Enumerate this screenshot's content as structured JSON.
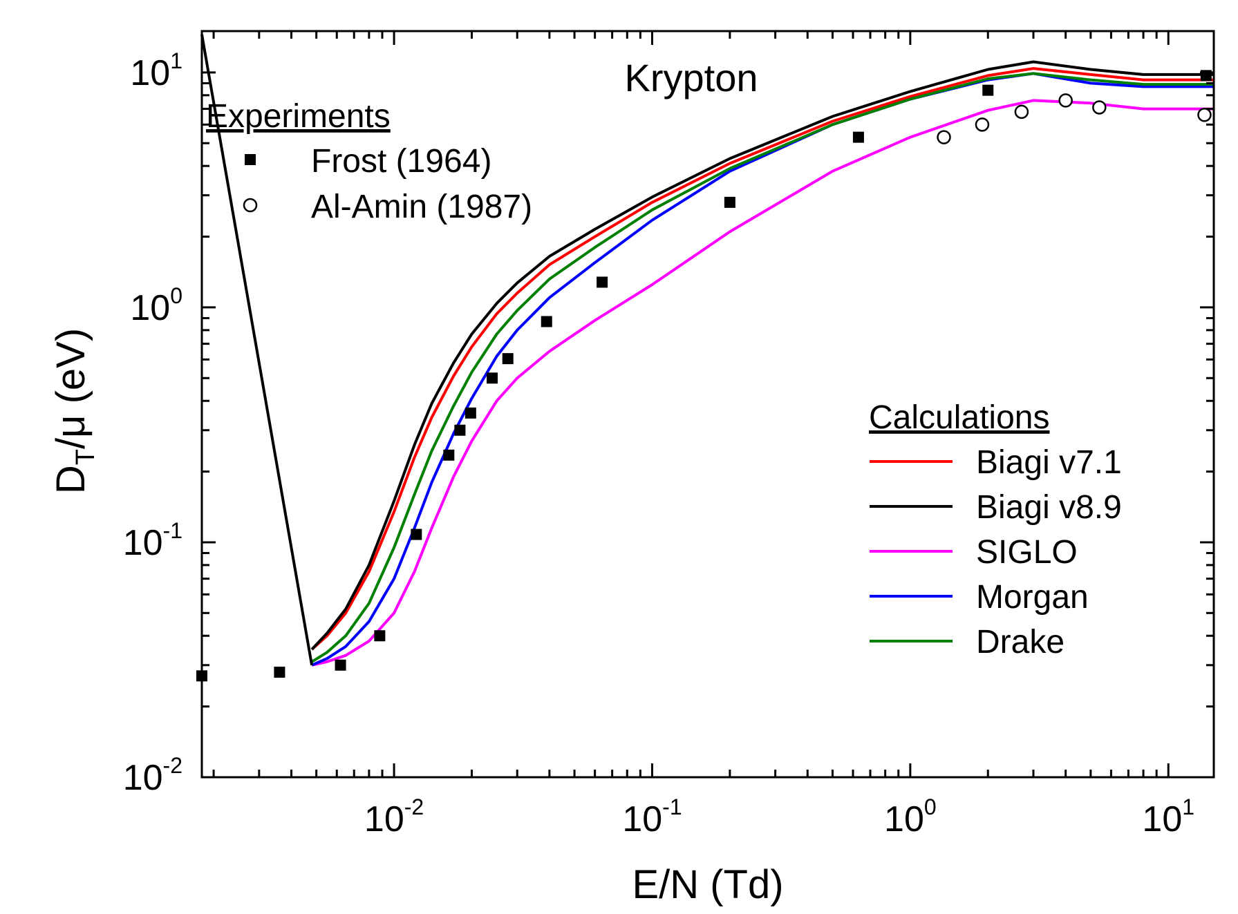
{
  "chart_data": {
    "type": "line",
    "title": "Krypton",
    "xlabel": "E/N (Td)",
    "ylabel": {
      "main": "D",
      "sub": "T",
      "rest": "/μ (eV)"
    },
    "xscale": "log",
    "yscale": "log",
    "xlim": [
      0.0018,
      15
    ],
    "ylim": [
      0.01,
      15
    ],
    "x_ticks": [
      {
        "value": 0.01,
        "base": "10",
        "exp": "-2"
      },
      {
        "value": 0.1,
        "base": "10",
        "exp": "-1"
      },
      {
        "value": 1,
        "base": "10",
        "exp": "0"
      },
      {
        "value": 10,
        "base": "10",
        "exp": "1"
      }
    ],
    "y_ticks": [
      {
        "value": 0.01,
        "base": "10",
        "exp": "-2"
      },
      {
        "value": 0.1,
        "base": "10",
        "exp": "-1"
      },
      {
        "value": 1,
        "base": "10",
        "exp": "0"
      },
      {
        "value": 10,
        "base": "10",
        "exp": "1"
      }
    ],
    "grid": false,
    "legend_experiments": {
      "title": "Experiments",
      "placement": "top-left"
    },
    "legend_calculations": {
      "title": "Calculations",
      "placement": "bottom-right"
    },
    "experiments": [
      {
        "name": "Frost (1964)",
        "marker": "filled-square",
        "points": [
          [
            0.0018,
            0.027
          ],
          [
            0.0036,
            0.028
          ],
          [
            0.0062,
            0.03
          ],
          [
            0.0088,
            0.04
          ],
          [
            0.0122,
            0.108
          ],
          [
            0.0163,
            0.235
          ],
          [
            0.018,
            0.3
          ],
          [
            0.0198,
            0.355
          ],
          [
            0.024,
            0.5
          ],
          [
            0.0276,
            0.605
          ],
          [
            0.039,
            0.87
          ],
          [
            0.064,
            1.28
          ],
          [
            0.2,
            2.8
          ],
          [
            0.63,
            5.3
          ],
          [
            2.0,
            8.4
          ],
          [
            14.0,
            9.7
          ]
        ]
      },
      {
        "name": "Al-Amin (1987)",
        "marker": "open-circle",
        "points": [
          [
            1.35,
            5.3
          ],
          [
            1.9,
            6.0
          ],
          [
            2.7,
            6.8
          ],
          [
            4.0,
            7.6
          ],
          [
            5.4,
            7.1
          ],
          [
            13.8,
            6.6
          ]
        ]
      }
    ],
    "series": [
      {
        "name": "Biagi v7.1",
        "color": "#ff0000",
        "points": [
          [
            0.0048,
            0.035
          ],
          [
            0.0055,
            0.04
          ],
          [
            0.0065,
            0.05
          ],
          [
            0.008,
            0.075
          ],
          [
            0.01,
            0.135
          ],
          [
            0.012,
            0.23
          ],
          [
            0.014,
            0.34
          ],
          [
            0.017,
            0.51
          ],
          [
            0.02,
            0.68
          ],
          [
            0.025,
            0.94
          ],
          [
            0.03,
            1.15
          ],
          [
            0.04,
            1.52
          ],
          [
            0.06,
            2.0
          ],
          [
            0.1,
            2.8
          ],
          [
            0.2,
            4.1
          ],
          [
            0.5,
            6.2
          ],
          [
            1.0,
            7.9
          ],
          [
            2.0,
            9.7
          ],
          [
            3.0,
            10.4
          ],
          [
            5.0,
            9.8
          ],
          [
            8.0,
            9.3
          ],
          [
            15.0,
            9.3
          ]
        ]
      },
      {
        "name": "Biagi v8.9",
        "color": "#000000",
        "points": [
          [
            0.0048,
            0.035
          ],
          [
            0.0055,
            0.041
          ],
          [
            0.0065,
            0.052
          ],
          [
            0.008,
            0.08
          ],
          [
            0.01,
            0.15
          ],
          [
            0.012,
            0.26
          ],
          [
            0.014,
            0.39
          ],
          [
            0.017,
            0.58
          ],
          [
            0.02,
            0.77
          ],
          [
            0.025,
            1.04
          ],
          [
            0.03,
            1.27
          ],
          [
            0.04,
            1.65
          ],
          [
            0.06,
            2.15
          ],
          [
            0.1,
            2.95
          ],
          [
            0.2,
            4.3
          ],
          [
            0.5,
            6.5
          ],
          [
            1.0,
            8.3
          ],
          [
            2.0,
            10.3
          ],
          [
            3.0,
            11.1
          ],
          [
            5.0,
            10.3
          ],
          [
            8.0,
            9.8
          ],
          [
            15.0,
            9.8
          ]
        ]
      },
      {
        "name": "SIGLO",
        "color": "#ff00ff",
        "points": [
          [
            0.0048,
            0.03
          ],
          [
            0.0055,
            0.031
          ],
          [
            0.0065,
            0.033
          ],
          [
            0.008,
            0.038
          ],
          [
            0.01,
            0.05
          ],
          [
            0.012,
            0.075
          ],
          [
            0.014,
            0.115
          ],
          [
            0.017,
            0.19
          ],
          [
            0.02,
            0.27
          ],
          [
            0.025,
            0.4
          ],
          [
            0.03,
            0.5
          ],
          [
            0.04,
            0.65
          ],
          [
            0.06,
            0.88
          ],
          [
            0.1,
            1.25
          ],
          [
            0.2,
            2.1
          ],
          [
            0.5,
            3.8
          ],
          [
            1.0,
            5.3
          ],
          [
            2.0,
            6.9
          ],
          [
            3.0,
            7.6
          ],
          [
            5.0,
            7.4
          ],
          [
            8.0,
            7.0
          ],
          [
            15.0,
            7.0
          ]
        ]
      },
      {
        "name": "Morgan",
        "color": "#0000ff",
        "points": [
          [
            0.0048,
            0.03
          ],
          [
            0.0055,
            0.032
          ],
          [
            0.0065,
            0.036
          ],
          [
            0.008,
            0.046
          ],
          [
            0.01,
            0.07
          ],
          [
            0.012,
            0.115
          ],
          [
            0.014,
            0.18
          ],
          [
            0.017,
            0.29
          ],
          [
            0.02,
            0.41
          ],
          [
            0.025,
            0.62
          ],
          [
            0.03,
            0.8
          ],
          [
            0.04,
            1.1
          ],
          [
            0.06,
            1.55
          ],
          [
            0.1,
            2.35
          ],
          [
            0.2,
            3.8
          ],
          [
            0.5,
            6.0
          ],
          [
            1.0,
            7.7
          ],
          [
            2.0,
            9.3
          ],
          [
            3.0,
            9.9
          ],
          [
            5.0,
            9.0
          ],
          [
            8.0,
            8.7
          ],
          [
            15.0,
            8.7
          ]
        ]
      },
      {
        "name": "Drake",
        "color": "#008000",
        "points": [
          [
            0.0048,
            0.031
          ],
          [
            0.0055,
            0.034
          ],
          [
            0.0065,
            0.04
          ],
          [
            0.008,
            0.055
          ],
          [
            0.01,
            0.095
          ],
          [
            0.012,
            0.16
          ],
          [
            0.014,
            0.245
          ],
          [
            0.017,
            0.38
          ],
          [
            0.02,
            0.53
          ],
          [
            0.025,
            0.77
          ],
          [
            0.03,
            0.97
          ],
          [
            0.04,
            1.32
          ],
          [
            0.06,
            1.8
          ],
          [
            0.1,
            2.6
          ],
          [
            0.2,
            3.9
          ],
          [
            0.5,
            6.0
          ],
          [
            1.0,
            7.7
          ],
          [
            2.0,
            9.4
          ],
          [
            3.0,
            9.9
          ],
          [
            5.0,
            9.3
          ],
          [
            8.0,
            8.9
          ],
          [
            15.0,
            8.9
          ]
        ]
      },
      {
        "name": "",
        "color": "#000000",
        "points": [
          [
            0.0018,
            14.5
          ],
          [
            0.0048,
            0.03
          ]
        ]
      }
    ]
  }
}
